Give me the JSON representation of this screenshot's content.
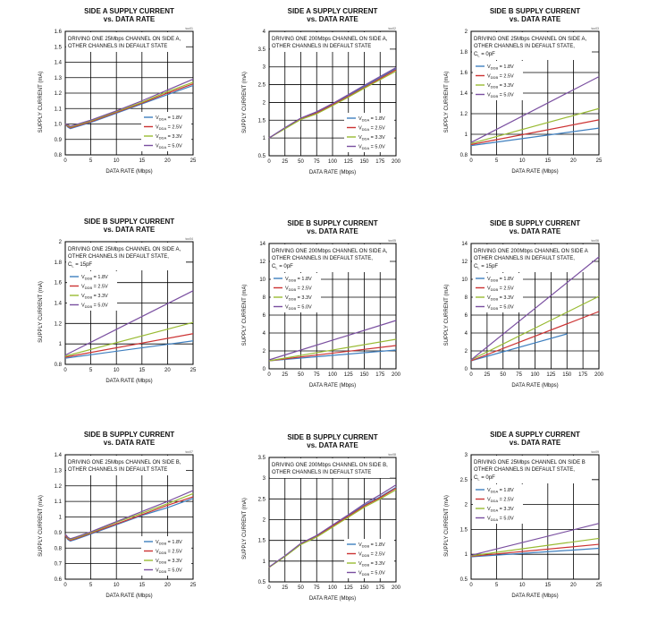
{
  "colors": {
    "v18": "#3f7fbf",
    "v25": "#cc3333",
    "v33": "#99bb33",
    "v50": "#7a4fa0"
  },
  "chart_data": [
    {
      "type": "line",
      "code": "toc01",
      "title": [
        "SIDE A SUPPLY CURRENT",
        "vs. DATA RATE"
      ],
      "annotation": [
        "DRIVING ONE 25Mbps CHANNEL ON SIDE A,",
        "OTHER CHANNELS IN DEFAULT STATE"
      ],
      "xlabel": "DATA RATE (Mbps)",
      "ylabel": "SUPPLY CURRENT (mA)",
      "xlim": [
        0,
        25
      ],
      "ylim": [
        0.8,
        1.6
      ],
      "xticks": [
        "0",
        "5",
        "10",
        "15",
        "20",
        "25"
      ],
      "yticks": [
        "0.8",
        "0.9",
        "1.0",
        "1.1",
        "1.2",
        "1.3",
        "1.4",
        "1.5",
        "1.6"
      ],
      "legend_position": "bottom-right",
      "series": [
        {
          "name_main": "V",
          "name_sub": "DDA",
          "name_rest": " = 1.8V",
          "x": [
            0,
            0.5,
            1,
            2,
            5,
            10,
            15,
            20,
            25
          ],
          "y": [
            1.0,
            0.98,
            0.97,
            0.98,
            1.01,
            1.07,
            1.13,
            1.19,
            1.25
          ]
        },
        {
          "name_main": "V",
          "name_sub": "DDA",
          "name_rest": " = 2.5V",
          "x": [
            0,
            0.5,
            1,
            2,
            5,
            10,
            15,
            20,
            25
          ],
          "y": [
            1.0,
            0.985,
            0.975,
            0.985,
            1.015,
            1.075,
            1.135,
            1.2,
            1.26
          ]
        },
        {
          "name_main": "V",
          "name_sub": "DDA",
          "name_rest": " = 3.3V",
          "x": [
            0,
            0.5,
            1,
            2,
            5,
            10,
            15,
            20,
            25
          ],
          "y": [
            1.0,
            0.99,
            0.98,
            0.99,
            1.02,
            1.08,
            1.14,
            1.21,
            1.27
          ]
        },
        {
          "name_main": "V",
          "name_sub": "DDA",
          "name_rest": " = 5.0V",
          "x": [
            0,
            0.5,
            1,
            2,
            5,
            10,
            15,
            20,
            25
          ],
          "y": [
            1.0,
            0.995,
            0.985,
            0.995,
            1.025,
            1.085,
            1.15,
            1.22,
            1.29
          ]
        }
      ]
    },
    {
      "type": "line",
      "code": "toc02",
      "title": [
        "SIDE A SUPPLY CURRENT",
        "vs. DATA RATE"
      ],
      "annotation": [
        "DRIVING ONE 200Mbps CHANNEL ON SIDE A,",
        "OTHER CHANNELS IN DEFAULT STATE"
      ],
      "xlabel": "DATA RATE (Mbps)",
      "ylabel": "SUPPLY CURRENT (mA)",
      "xlim": [
        0,
        200
      ],
      "ylim": [
        0.5,
        4.0
      ],
      "xticks": [
        "0",
        "25",
        "50",
        "75",
        "100",
        "125",
        "150",
        "175",
        "200"
      ],
      "yticks": [
        "0.5",
        "1",
        "1.5",
        "2",
        "2.5",
        "3",
        "3.5",
        "4"
      ],
      "legend_position": "bottom-right",
      "series": [
        {
          "name_main": "V",
          "name_sub": "DDA",
          "name_rest": " = 1.8V",
          "x": [
            0,
            25,
            50,
            75,
            100,
            125,
            150,
            175,
            200
          ],
          "y": [
            1.0,
            1.28,
            1.55,
            1.72,
            1.95,
            2.2,
            2.45,
            2.7,
            2.95
          ]
        },
        {
          "name_main": "V",
          "name_sub": "DDA",
          "name_rest": " = 2.5V",
          "x": [
            0,
            25,
            50,
            75,
            100,
            125,
            150,
            175,
            200
          ],
          "y": [
            1.0,
            1.27,
            1.53,
            1.7,
            1.93,
            2.17,
            2.42,
            2.67,
            2.92
          ]
        },
        {
          "name_main": "V",
          "name_sub": "DDA",
          "name_rest": " = 3.3V",
          "x": [
            0,
            25,
            50,
            75,
            100,
            125,
            150,
            175,
            200
          ],
          "y": [
            1.0,
            1.26,
            1.52,
            1.68,
            1.91,
            2.15,
            2.4,
            2.64,
            2.88
          ]
        },
        {
          "name_main": "V",
          "name_sub": "DDA",
          "name_rest": " = 5.0V",
          "x": [
            0,
            25,
            50,
            75,
            100,
            125,
            150,
            175,
            200
          ],
          "y": [
            1.0,
            1.29,
            1.56,
            1.74,
            1.97,
            2.22,
            2.48,
            2.73,
            2.98
          ]
        }
      ]
    },
    {
      "type": "line",
      "code": "toc03",
      "title": [
        "SIDE B SUPPLY CURRENT",
        "vs. DATA RATE"
      ],
      "annotation": [
        "DRIVING ONE 25Mbps CHANNEL ON SIDE A,",
        "OTHER CHANNELS IN DEFAULT STATE,"
      ],
      "cap_main": "C",
      "cap_sub": "L",
      "cap_rest": " = 0pF",
      "xlabel": "DATA RATE (Mbps)",
      "ylabel": "SUPPLY CURRENT (mA)",
      "xlim": [
        0,
        25
      ],
      "ylim": [
        0.8,
        2.0
      ],
      "xticks": [
        "0",
        "5",
        "10",
        "15",
        "20",
        "25"
      ],
      "yticks": [
        "0.8",
        "1",
        "1.2",
        "1.4",
        "1.6",
        "1.8",
        "2"
      ],
      "legend_position": "top-left",
      "series": [
        {
          "name_main": "V",
          "name_sub": "DDB",
          "name_rest": " = 1.8V",
          "x": [
            0,
            25
          ],
          "y": [
            0.89,
            1.06
          ]
        },
        {
          "name_main": "V",
          "name_sub": "DDB",
          "name_rest": " = 2.5V",
          "x": [
            0,
            25
          ],
          "y": [
            0.9,
            1.14
          ]
        },
        {
          "name_main": "V",
          "name_sub": "DDB",
          "name_rest": " = 3.3V",
          "x": [
            0,
            25
          ],
          "y": [
            0.91,
            1.25
          ]
        },
        {
          "name_main": "V",
          "name_sub": "DDB",
          "name_rest": " = 5.0V",
          "x": [
            0,
            25
          ],
          "y": [
            0.92,
            1.56
          ]
        }
      ]
    },
    {
      "type": "line",
      "code": "toc04",
      "title": [
        "SIDE B SUPPLY CURRENT",
        "vs. DATA RATE"
      ],
      "annotation": [
        "DRIVING ONE 25Mbps CHANNEL ON SIDE A,",
        "OTHER CHANNELS IN DEFAULT STATE,"
      ],
      "cap_main": "C",
      "cap_sub": "L",
      "cap_rest": " = 15pF",
      "xlabel": "DATA RATE (Mbps)",
      "ylabel": "SUPPLY CURRENT (mA)",
      "xlim": [
        0,
        25
      ],
      "ylim": [
        0.8,
        2.0
      ],
      "xticks": [
        "0",
        "5",
        "10",
        "15",
        "20",
        "25"
      ],
      "yticks": [
        "0.8",
        "1",
        "1.2",
        "1.4",
        "1.6",
        "1.8",
        "2"
      ],
      "legend_position": "top-left",
      "series": [
        {
          "name_main": "V",
          "name_sub": "DDB",
          "name_rest": " = 1.8V",
          "x": [
            0,
            25
          ],
          "y": [
            0.86,
            1.03
          ]
        },
        {
          "name_main": "V",
          "name_sub": "DDB",
          "name_rest": " = 2.5V",
          "x": [
            0,
            25
          ],
          "y": [
            0.87,
            1.1
          ]
        },
        {
          "name_main": "V",
          "name_sub": "DDB",
          "name_rest": " = 3.3V",
          "x": [
            0,
            25
          ],
          "y": [
            0.88,
            1.21
          ]
        },
        {
          "name_main": "V",
          "name_sub": "DDB",
          "name_rest": " = 5.0V",
          "x": [
            0,
            25
          ],
          "y": [
            0.89,
            1.52
          ]
        }
      ]
    },
    {
      "type": "line",
      "code": "toc05",
      "title": [
        "SIDE B SUPPLY CURRENT",
        "vs. DATA RATE"
      ],
      "annotation": [
        "DRIVING ONE 200Mbps CHANNEL ON SIDE A,",
        "OTHER CHANNELS IN DEFAULT STATE,"
      ],
      "cap_main": "C",
      "cap_sub": "L",
      "cap_rest": " = 0pF",
      "xlabel": "DATA RATE (Mbps)",
      "ylabel": "SUPPLY CURRENT (mA)",
      "xlim": [
        0,
        200
      ],
      "ylim": [
        0,
        14
      ],
      "xticks": [
        "0",
        "25",
        "50",
        "75",
        "100",
        "125",
        "150",
        "175",
        "200"
      ],
      "yticks": [
        "0",
        "2",
        "4",
        "6",
        "8",
        "10",
        "12",
        "14"
      ],
      "legend_position": "top-left",
      "series": [
        {
          "name_main": "V",
          "name_sub": "DDB",
          "name_rest": " = 1.8V",
          "x": [
            0,
            200
          ],
          "y": [
            0.9,
            2.1
          ]
        },
        {
          "name_main": "V",
          "name_sub": "DDB",
          "name_rest": " = 2.5V",
          "x": [
            0,
            200
          ],
          "y": [
            0.9,
            2.6
          ]
        },
        {
          "name_main": "V",
          "name_sub": "DDB",
          "name_rest": " = 3.3V",
          "x": [
            0,
            200
          ],
          "y": [
            0.9,
            3.3
          ]
        },
        {
          "name_main": "V",
          "name_sub": "DDB",
          "name_rest": " = 5.0V",
          "x": [
            0,
            200
          ],
          "y": [
            1.0,
            5.4
          ]
        }
      ]
    },
    {
      "type": "line",
      "code": "toc06",
      "title": [
        "SIDE B SUPPLY CURRENT",
        "vs. DATA RATE"
      ],
      "annotation": [
        "DRIVING ONE 200Mbps CHANNEL ON SIDE A",
        "OTHER CHANNELS IN DEFAULT STATE,"
      ],
      "cap_main": "C",
      "cap_sub": "L",
      "cap_rest": " = 15pF",
      "xlabel": "DATA RATE (Mbps)",
      "ylabel": "SUPPLY CURRENT (mA)",
      "xlim": [
        0,
        200
      ],
      "ylim": [
        0,
        14
      ],
      "xticks": [
        "0",
        "25",
        "50",
        "75",
        "100",
        "125",
        "150",
        "175",
        "200"
      ],
      "yticks": [
        "0",
        "2",
        "4",
        "6",
        "8",
        "10",
        "12",
        "14"
      ],
      "legend_position": "top-left",
      "series": [
        {
          "name_main": "V",
          "name_sub": "DDB",
          "name_rest": " = 1.8V",
          "x": [
            0,
            150
          ],
          "y": [
            0.9,
            3.9
          ]
        },
        {
          "name_main": "V",
          "name_sub": "DDB",
          "name_rest": " = 2.5V",
          "x": [
            0,
            200
          ],
          "y": [
            0.9,
            6.4
          ]
        },
        {
          "name_main": "V",
          "name_sub": "DDB",
          "name_rest": " = 3.3V",
          "x": [
            0,
            200
          ],
          "y": [
            1.0,
            8.1
          ]
        },
        {
          "name_main": "V",
          "name_sub": "DDB",
          "name_rest": " = 5.0V",
          "x": [
            0,
            200
          ],
          "y": [
            1.0,
            12.5
          ]
        }
      ]
    },
    {
      "type": "line",
      "code": "toc07",
      "title": [
        "SIDE B SUPPLY CURRENT",
        "vs. DATA RATE"
      ],
      "annotation": [
        "DRIVING ONE 25Mbps CHANNEL ON SIDE B,",
        "OTHER CHANNELS IN DEFAULT STATE"
      ],
      "xlabel": "DATA RATE (Mbps)",
      "ylabel": "SUPPLY CURRENT (mA)",
      "xlim": [
        0,
        25
      ],
      "ylim": [
        0.6,
        1.4
      ],
      "xticks": [
        "0",
        "5",
        "10",
        "15",
        "20",
        "25"
      ],
      "yticks": [
        "0.6",
        "0.7",
        "0.8",
        "0.9",
        "1",
        "1.1",
        "1.2",
        "1.3",
        "1.4"
      ],
      "legend_position": "bottom-right",
      "series": [
        {
          "name_main": "V",
          "name_sub": "DDB",
          "name_rest": " = 1.8V",
          "x": [
            0,
            0.5,
            1,
            2,
            5,
            10,
            15,
            20,
            25
          ],
          "y": [
            0.88,
            0.855,
            0.845,
            0.855,
            0.89,
            0.95,
            1.01,
            1.06,
            1.12
          ]
        },
        {
          "name_main": "V",
          "name_sub": "DDB",
          "name_rest": " = 2.5V",
          "x": [
            0,
            0.5,
            1,
            2,
            5,
            10,
            15,
            20,
            25
          ],
          "y": [
            0.88,
            0.86,
            0.85,
            0.86,
            0.895,
            0.955,
            1.015,
            1.075,
            1.13
          ]
        },
        {
          "name_main": "V",
          "name_sub": "DDB",
          "name_rest": " = 3.3V",
          "x": [
            0,
            0.5,
            1,
            2,
            5,
            10,
            15,
            20,
            25
          ],
          "y": [
            0.89,
            0.865,
            0.855,
            0.865,
            0.9,
            0.965,
            1.025,
            1.085,
            1.15
          ]
        },
        {
          "name_main": "V",
          "name_sub": "DDB",
          "name_rest": " = 5.0V",
          "x": [
            0,
            0.5,
            1,
            2,
            5,
            10,
            15,
            20,
            25
          ],
          "y": [
            0.89,
            0.87,
            0.86,
            0.87,
            0.905,
            0.97,
            1.035,
            1.1,
            1.17
          ]
        }
      ]
    },
    {
      "type": "line",
      "code": "toc08",
      "title": [
        "SIDE B SUPPLY CURRENT",
        "vs. DATA RATE"
      ],
      "annotation": [
        "DRIVING ONE 200Mbps CHANNEL ON SIDE B,",
        "OTHER CHANNELS IN DEFAULT STATE"
      ],
      "xlabel": "DATA RATE (Mbps)",
      "ylabel": "SUPPLY CURRENT (mA)",
      "xlim": [
        0,
        200
      ],
      "ylim": [
        0.5,
        3.5
      ],
      "xticks": [
        "0",
        "25",
        "50",
        "75",
        "100",
        "125",
        "150",
        "175",
        "200"
      ],
      "yticks": [
        "0.5",
        "1",
        "1.5",
        "2",
        "2.5",
        "3",
        "3.5"
      ],
      "legend_position": "bottom-right",
      "series": [
        {
          "name_main": "V",
          "name_sub": "DDB",
          "name_rest": " = 1.8V",
          "x": [
            0,
            25,
            50,
            75,
            100,
            125,
            150,
            175,
            200
          ],
          "y": [
            0.85,
            1.12,
            1.42,
            1.6,
            1.85,
            2.1,
            2.35,
            2.55,
            2.78
          ]
        },
        {
          "name_main": "V",
          "name_sub": "DDB",
          "name_rest": " = 2.5V",
          "x": [
            0,
            25,
            50,
            75,
            100,
            125,
            150,
            175,
            200
          ],
          "y": [
            0.85,
            1.12,
            1.41,
            1.59,
            1.84,
            2.08,
            2.33,
            2.53,
            2.76
          ]
        },
        {
          "name_main": "V",
          "name_sub": "DDB",
          "name_rest": " = 3.3V",
          "x": [
            0,
            25,
            50,
            75,
            100,
            125,
            150,
            175,
            200
          ],
          "y": [
            0.85,
            1.11,
            1.4,
            1.58,
            1.82,
            2.06,
            2.3,
            2.5,
            2.72
          ]
        },
        {
          "name_main": "V",
          "name_sub": "DDB",
          "name_rest": " = 5.0V",
          "x": [
            0,
            25,
            50,
            75,
            100,
            125,
            150,
            175,
            200
          ],
          "y": [
            0.86,
            1.13,
            1.43,
            1.62,
            1.87,
            2.12,
            2.38,
            2.6,
            2.84
          ]
        }
      ]
    },
    {
      "type": "line",
      "code": "toc09",
      "title": [
        "SIDE A SUPPLY CURRENT",
        "vs. DATA RATE"
      ],
      "annotation": [
        "DRIVING ONE 25Mbps CHANNEL ON SIDE B",
        "OTHER CHANNELS IN DEFAULT STATE,"
      ],
      "cap_main": "C",
      "cap_sub": "L",
      "cap_rest": " = 0pF",
      "xlabel": "DATA RATE (Mbps)",
      "ylabel": "SUPPLY CURRENT (mA)",
      "xlim": [
        0,
        25
      ],
      "ylim": [
        0.5,
        3.0
      ],
      "xticks": [
        "0",
        "5",
        "10",
        "15",
        "20",
        "25"
      ],
      "yticks": [
        "0.5",
        "1",
        "1.5",
        "2",
        "2.5",
        "3"
      ],
      "legend_position": "top-left",
      "series": [
        {
          "name_main": "V",
          "name_sub": "DDA",
          "name_rest": " = 1.8V",
          "x": [
            0,
            25
          ],
          "y": [
            0.95,
            1.12
          ]
        },
        {
          "name_main": "V",
          "name_sub": "DDA",
          "name_rest": " = 2.5V",
          "x": [
            0,
            25
          ],
          "y": [
            0.96,
            1.2
          ]
        },
        {
          "name_main": "V",
          "name_sub": "DDA",
          "name_rest": " = 3.3V",
          "x": [
            0,
            25
          ],
          "y": [
            0.97,
            1.32
          ]
        },
        {
          "name_main": "V",
          "name_sub": "DDA",
          "name_rest": " = 5.0V",
          "x": [
            0,
            25
          ],
          "y": [
            0.98,
            1.62
          ]
        }
      ]
    }
  ]
}
